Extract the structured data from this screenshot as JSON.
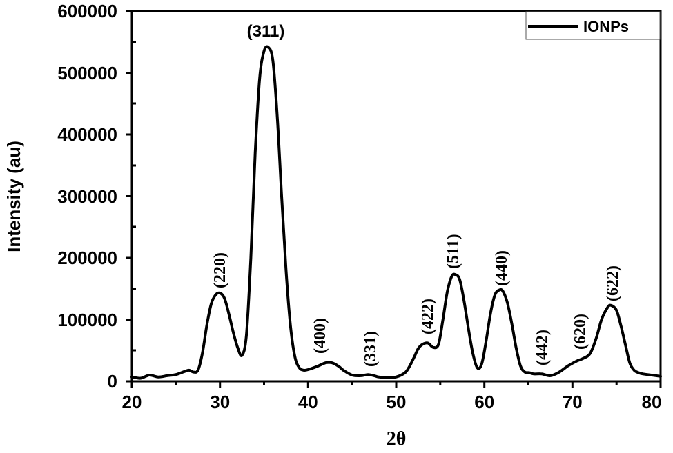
{
  "chart_data": {
    "type": "line",
    "title": "",
    "xlabel": "2θ",
    "ylabel": "Intensity (au)",
    "xlim": [
      20,
      80
    ],
    "ylim": [
      0,
      600000
    ],
    "x_ticks": [
      20,
      30,
      40,
      50,
      60,
      70,
      80
    ],
    "y_ticks": [
      0,
      100000,
      200000,
      300000,
      400000,
      500000,
      600000
    ],
    "x_tick_labels": [
      "20",
      "30",
      "40",
      "50",
      "60",
      "70",
      "80"
    ],
    "y_tick_labels": [
      "0",
      "100000",
      "200000",
      "300000",
      "400000",
      "500000",
      "600000"
    ],
    "grid": false,
    "legend": {
      "position": "top-right",
      "entries": [
        "IONPs"
      ]
    },
    "series": [
      {
        "name": "IONPs",
        "color": "#000000",
        "x": [
          20,
          21,
          22,
          23,
          24,
          25,
          26,
          26.5,
          27,
          27.5,
          28,
          28.5,
          29,
          29.5,
          30,
          30.5,
          31,
          31.5,
          32,
          32.5,
          33,
          33.5,
          34,
          34.5,
          35,
          35.5,
          36,
          36.5,
          37,
          37.5,
          38,
          38.5,
          39,
          39.5,
          40,
          41,
          42,
          42.7,
          43.5,
          44,
          45,
          46,
          46.8,
          47.5,
          48,
          49,
          50,
          51,
          51.5,
          52,
          52.5,
          53,
          53.6,
          54.2,
          54.8,
          55.3,
          55.8,
          56.3,
          56.7,
          57.2,
          57.7,
          58.2,
          58.7,
          59.2,
          59.7,
          60.2,
          60.7,
          61.2,
          61.7,
          62.1,
          62.6,
          63.1,
          63.6,
          64.1,
          64.6,
          65.1,
          65.6,
          66.5,
          67.5,
          68.5,
          69.5,
          70.5,
          71.2,
          72,
          72.7,
          73.3,
          74,
          74.4,
          75,
          75.5,
          76,
          76.5,
          77,
          77.5,
          78,
          79,
          80
        ],
        "y": [
          7000,
          5000,
          10000,
          7000,
          9000,
          11000,
          16000,
          18000,
          15000,
          18000,
          45000,
          90000,
          125000,
          140000,
          143000,
          135000,
          110000,
          80000,
          55000,
          42000,
          75000,
          200000,
          370000,
          490000,
          535000,
          541000,
          520000,
          430000,
          300000,
          180000,
          90000,
          40000,
          22000,
          18000,
          19000,
          24000,
          30000,
          30000,
          24000,
          18000,
          10000,
          9000,
          11000,
          9000,
          7000,
          6000,
          7000,
          14000,
          24000,
          38000,
          53000,
          60000,
          62000,
          55000,
          60000,
          100000,
          145000,
          170000,
          173000,
          165000,
          130000,
          85000,
          45000,
          22000,
          28000,
          65000,
          110000,
          140000,
          148000,
          146000,
          128000,
          95000,
          55000,
          25000,
          15000,
          14000,
          12000,
          12000,
          9000,
          15000,
          25000,
          33000,
          37000,
          45000,
          70000,
          100000,
          120000,
          123000,
          115000,
          90000,
          60000,
          30000,
          18000,
          14000,
          12000,
          10000,
          8000
        ]
      }
    ],
    "peaks": [
      {
        "label": "(220)",
        "x": 30.0,
        "y": 143000
      },
      {
        "label": "(311)",
        "x": 35.5,
        "y": 541000
      },
      {
        "label": "(400)",
        "x": 42.8,
        "y": 30000
      },
      {
        "label": "(331)",
        "x": 46.8,
        "y": 11000
      },
      {
        "label": "(422)",
        "x": 53.3,
        "y": 62000
      },
      {
        "label": "(511)",
        "x": 56.7,
        "y": 173000
      },
      {
        "label": "(440)",
        "x": 62.1,
        "y": 148000
      },
      {
        "label": "(442)",
        "x": 66.5,
        "y": 12000
      },
      {
        "label": "(620)",
        "x": 71.0,
        "y": 36000
      },
      {
        "label": "(622)",
        "x": 74.3,
        "y": 123000
      }
    ]
  },
  "labels": {
    "ylabel": "Intensity (au)",
    "xlabel": "2θ",
    "legend": "IONPs",
    "x_ticks": [
      "20",
      "30",
      "40",
      "50",
      "60",
      "70",
      "80"
    ],
    "y_ticks": [
      "0",
      "100000",
      "200000",
      "300000",
      "400000",
      "500000",
      "600000"
    ],
    "peaks": [
      "(220)",
      "(311)",
      "(400)",
      "(331)",
      "(422)",
      "(511)",
      "(440)",
      "(442)",
      "(620)",
      "(622)"
    ]
  }
}
